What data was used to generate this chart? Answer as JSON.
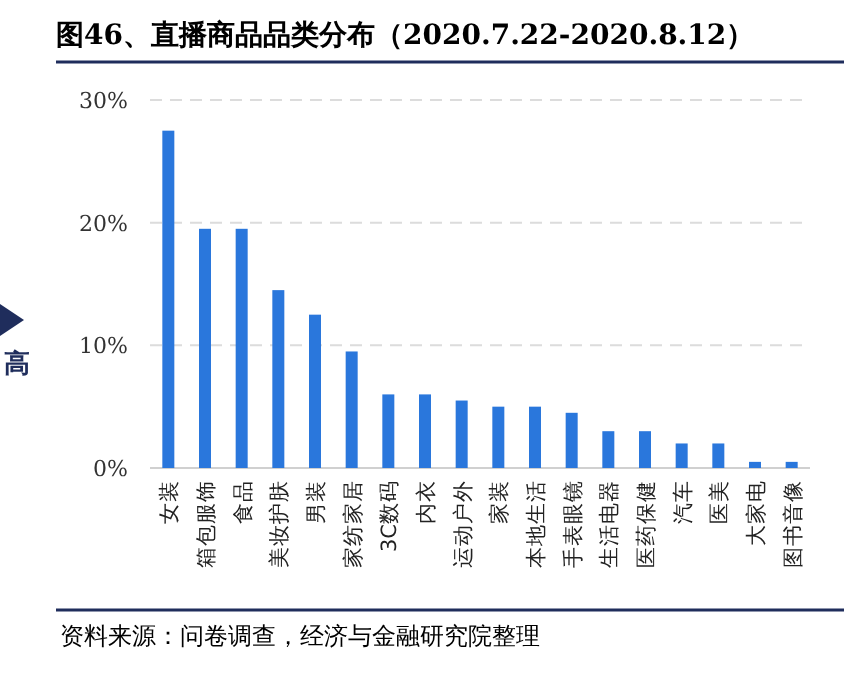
{
  "chart_data": {
    "type": "bar",
    "title": "图46、直播商品品类分布（2020.7.22-2020.8.12）",
    "categories": [
      "女装",
      "箱包服饰",
      "食品",
      "美妆护肤",
      "男装",
      "家纺家居",
      "3C数码",
      "内衣",
      "运动户外",
      "家装",
      "本地生活",
      "手表眼镜",
      "生活电器",
      "医药保健",
      "汽车",
      "医美",
      "大家电",
      "图书音像"
    ],
    "values": [
      27.5,
      19.5,
      19.5,
      14.5,
      12.5,
      9.5,
      6,
      6,
      5.5,
      5,
      5,
      4.5,
      3,
      3,
      2,
      2,
      0.5,
      0.5
    ],
    "color": "#2a77dc",
    "ylim": [
      0,
      30
    ],
    "yticks": [
      {
        "value": 0,
        "label": "0%"
      },
      {
        "value": 10,
        "label": "10%"
      },
      {
        "value": 20,
        "label": "20%"
      },
      {
        "value": 30,
        "label": "30%"
      }
    ],
    "grid": "y",
    "annotations": [
      "高",
      "资料来源：问卷调查，经济与金融研究院整理"
    ]
  }
}
